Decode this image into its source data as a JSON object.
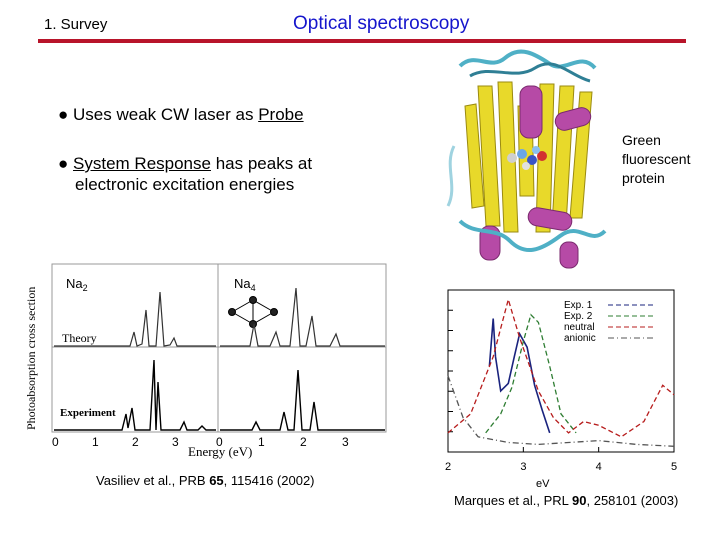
{
  "header": {
    "section": "1. Survey",
    "title": "Optical spectroscopy"
  },
  "bullets": [
    {
      "symbol": "●",
      "before": "Uses weak CW laser as ",
      "link": "Probe",
      "line2": ""
    },
    {
      "symbol": "●",
      "before": "",
      "link": "System Response",
      "after": " has peaks at",
      "line2": "electronic excitation energies"
    }
  ],
  "gfp": {
    "lines": [
      "Green",
      "fluorescent",
      "protein"
    ]
  },
  "left_chart": {
    "ylabel": "Photoabsorption cross section",
    "xlabel": "Energy (eV)",
    "panel_na2": "Na",
    "panel_na2_sub": "2",
    "panel_na4": "Na",
    "panel_na4_sub": "4",
    "theory_label": "Theory",
    "experiment_label": "Experiment",
    "ticks_na2": [
      "0",
      "1",
      "2",
      "3"
    ],
    "ticks_na4": [
      "0",
      "1",
      "2",
      "3"
    ],
    "citation": {
      "before": "Vasiliev et al., PRB ",
      "vol": "65",
      "after": ", 115416 (2002)"
    }
  },
  "chart_data": {
    "type": "line",
    "x_ticks": [
      "2",
      "3",
      "4",
      "5"
    ],
    "xlabel": "eV",
    "xlim": [
      2,
      5
    ],
    "series": [
      {
        "name": "Exp. 1",
        "style": "dashed",
        "color": "#1a237e",
        "points": [
          [
            2.55,
            0.45
          ],
          [
            2.6,
            0.7
          ],
          [
            2.63,
            0.5
          ],
          [
            2.7,
            0.32
          ],
          [
            2.8,
            0.36
          ],
          [
            2.88,
            0.5
          ],
          [
            2.95,
            0.62
          ],
          [
            3.05,
            0.55
          ],
          [
            3.15,
            0.35
          ],
          [
            3.25,
            0.22
          ],
          [
            3.35,
            0.1
          ]
        ]
      },
      {
        "name": "Exp. 2",
        "style": "dashed",
        "color": "#2e7d32",
        "points": [
          [
            2.5,
            0.1
          ],
          [
            2.7,
            0.2
          ],
          [
            2.85,
            0.34
          ],
          [
            3.0,
            0.58
          ],
          [
            3.1,
            0.72
          ],
          [
            3.2,
            0.68
          ],
          [
            3.35,
            0.45
          ],
          [
            3.5,
            0.2
          ],
          [
            3.7,
            0.1
          ]
        ]
      },
      {
        "name": "neutral",
        "style": "dashed",
        "color": "#b71c1c",
        "points": [
          [
            2.0,
            0.1
          ],
          [
            2.3,
            0.2
          ],
          [
            2.6,
            0.5
          ],
          [
            2.8,
            0.8
          ],
          [
            2.95,
            0.6
          ],
          [
            3.2,
            0.32
          ],
          [
            3.4,
            0.18
          ],
          [
            3.6,
            0.1
          ],
          [
            3.8,
            0.16
          ],
          [
            4.0,
            0.14
          ],
          [
            4.3,
            0.08
          ],
          [
            4.6,
            0.16
          ],
          [
            4.85,
            0.35
          ],
          [
            5.0,
            0.3
          ]
        ]
      },
      {
        "name": "anionic",
        "style": "dashdot",
        "color": "#555555",
        "points": [
          [
            2.0,
            0.4
          ],
          [
            2.2,
            0.18
          ],
          [
            2.4,
            0.08
          ],
          [
            2.8,
            0.05
          ],
          [
            3.2,
            0.04
          ],
          [
            3.6,
            0.05
          ],
          [
            4.0,
            0.06
          ],
          [
            4.5,
            0.04
          ],
          [
            5.0,
            0.03
          ]
        ]
      }
    ]
  },
  "right_citation": {
    "before": "Marques et al., PRL ",
    "vol": "90",
    "after": ", 258101 (2003)"
  }
}
